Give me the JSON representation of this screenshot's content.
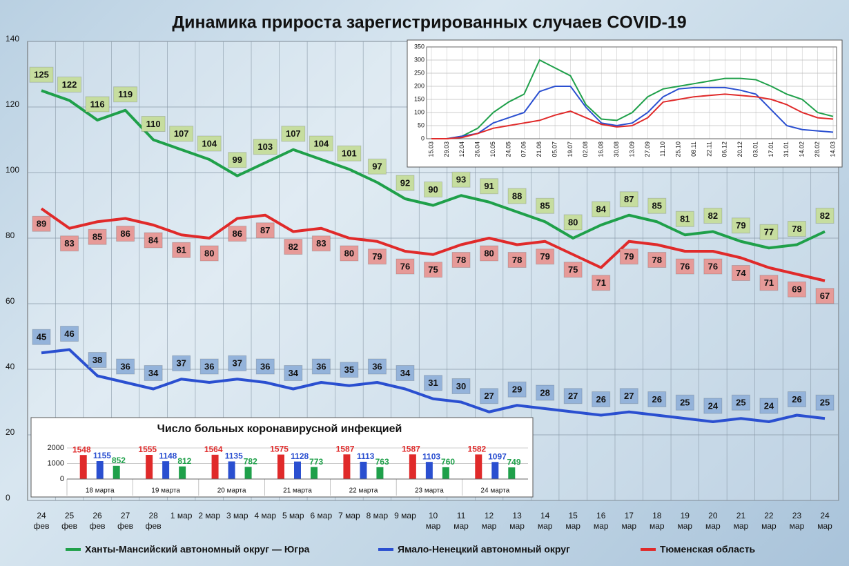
{
  "chart_data": [
    {
      "type": "line",
      "title": "Динамика прироста зарегистрированных случаев COVID-19",
      "categories": [
        "24\nфев",
        "25\nфев",
        "26\nфев",
        "27\nфев",
        "28\nфев",
        "1 мар",
        "2 мар",
        "3 мар",
        "4 мар",
        "5 мар",
        "6 мар",
        "7 мар",
        "8 мар",
        "9 мар",
        "10\nмар",
        "11\nмар",
        "12\nмар",
        "13\nмар",
        "14\nмар",
        "15\nмар",
        "16\nмар",
        "17\nмар",
        "18\nмар",
        "19\nмар",
        "20\nмар",
        "21\nмар",
        "22\nмар",
        "23\nмар",
        "24\nмар"
      ],
      "series": [
        {
          "name": "Ханты-Мансийский автономный округ — Югра",
          "color": "#1fa04a",
          "label_color": "#c6dd9f",
          "values": [
            125,
            122,
            116,
            119,
            110,
            107,
            104,
            99,
            103,
            107,
            104,
            101,
            97,
            92,
            90,
            93,
            91,
            88,
            85,
            80,
            84,
            87,
            85,
            81,
            82,
            79,
            77,
            78,
            82
          ]
        },
        {
          "name": "Ямало-Ненецкий автономный округ",
          "color": "#2a4fd0",
          "label_color": "#94b3da",
          "values": [
            45,
            46,
            38,
            36,
            34,
            37,
            36,
            37,
            36,
            34,
            36,
            35,
            36,
            34,
            31,
            30,
            27,
            29,
            28,
            27,
            26,
            27,
            26,
            25,
            24,
            25,
            24,
            26,
            25
          ]
        },
        {
          "name": "Тюменская область",
          "color": "#e02a2a",
          "label_color": "#e69a98",
          "values": [
            89,
            83,
            85,
            86,
            84,
            81,
            80,
            86,
            87,
            82,
            83,
            80,
            79,
            76,
            75,
            78,
            80,
            78,
            79,
            75,
            71,
            79,
            78,
            76,
            76,
            74,
            71,
            69,
            67
          ]
        }
      ],
      "ylim": [
        0,
        140
      ],
      "yticks": [
        0,
        20,
        40,
        60,
        80,
        100,
        120,
        140
      ],
      "grid": true
    },
    {
      "type": "line",
      "categories": [
        "15.03",
        "29.03",
        "12.04",
        "26.04",
        "10.05",
        "24.05",
        "07.06",
        "21.06",
        "05.07",
        "19.07",
        "02.08",
        "16.08",
        "30.08",
        "13.09",
        "27.09",
        "11.10",
        "25.10",
        "08.11",
        "22.11",
        "06.12",
        "20.12",
        "03.01",
        "17.01",
        "31.01",
        "14.02",
        "28.02",
        "14.03"
      ],
      "series": [
        {
          "color": "#1fa04a",
          "values": [
            0,
            0,
            10,
            40,
            100,
            140,
            170,
            300,
            270,
            240,
            130,
            75,
            70,
            100,
            160,
            190,
            200,
            210,
            220,
            230,
            230,
            225,
            200,
            170,
            150,
            100,
            85
          ]
        },
        {
          "color": "#2a4fd0",
          "values": [
            0,
            0,
            10,
            20,
            60,
            80,
            100,
            180,
            200,
            200,
            120,
            60,
            50,
            60,
            100,
            160,
            190,
            195,
            195,
            195,
            185,
            170,
            110,
            50,
            35,
            30,
            25
          ]
        },
        {
          "color": "#e02a2a",
          "values": [
            0,
            0,
            5,
            20,
            40,
            50,
            60,
            70,
            90,
            105,
            80,
            55,
            45,
            50,
            80,
            140,
            150,
            160,
            165,
            170,
            165,
            160,
            150,
            130,
            100,
            80,
            75
          ]
        }
      ],
      "ylim": [
        0,
        350
      ],
      "yticks": [
        0,
        50,
        100,
        150,
        200,
        250,
        300,
        350
      ],
      "grid": true
    },
    {
      "type": "bar",
      "title": "Число больных коронавирусной инфекцией",
      "categories": [
        "18 марта",
        "19 марта",
        "20 марта",
        "21 марта",
        "22 марта",
        "23 марта",
        "24 марта"
      ],
      "series": [
        {
          "color": "#e02a2a",
          "values": [
            1548,
            1555,
            1564,
            1575,
            1587,
            1587,
            1582
          ]
        },
        {
          "color": "#2a4fd0",
          "values": [
            1155,
            1148,
            1135,
            1128,
            1113,
            1103,
            1097
          ]
        },
        {
          "color": "#1fa04a",
          "values": [
            852,
            812,
            782,
            773,
            763,
            760,
            749
          ]
        }
      ],
      "ylim": [
        0,
        2400
      ],
      "yticks": [
        0,
        1000,
        2000
      ],
      "grid": true
    }
  ]
}
